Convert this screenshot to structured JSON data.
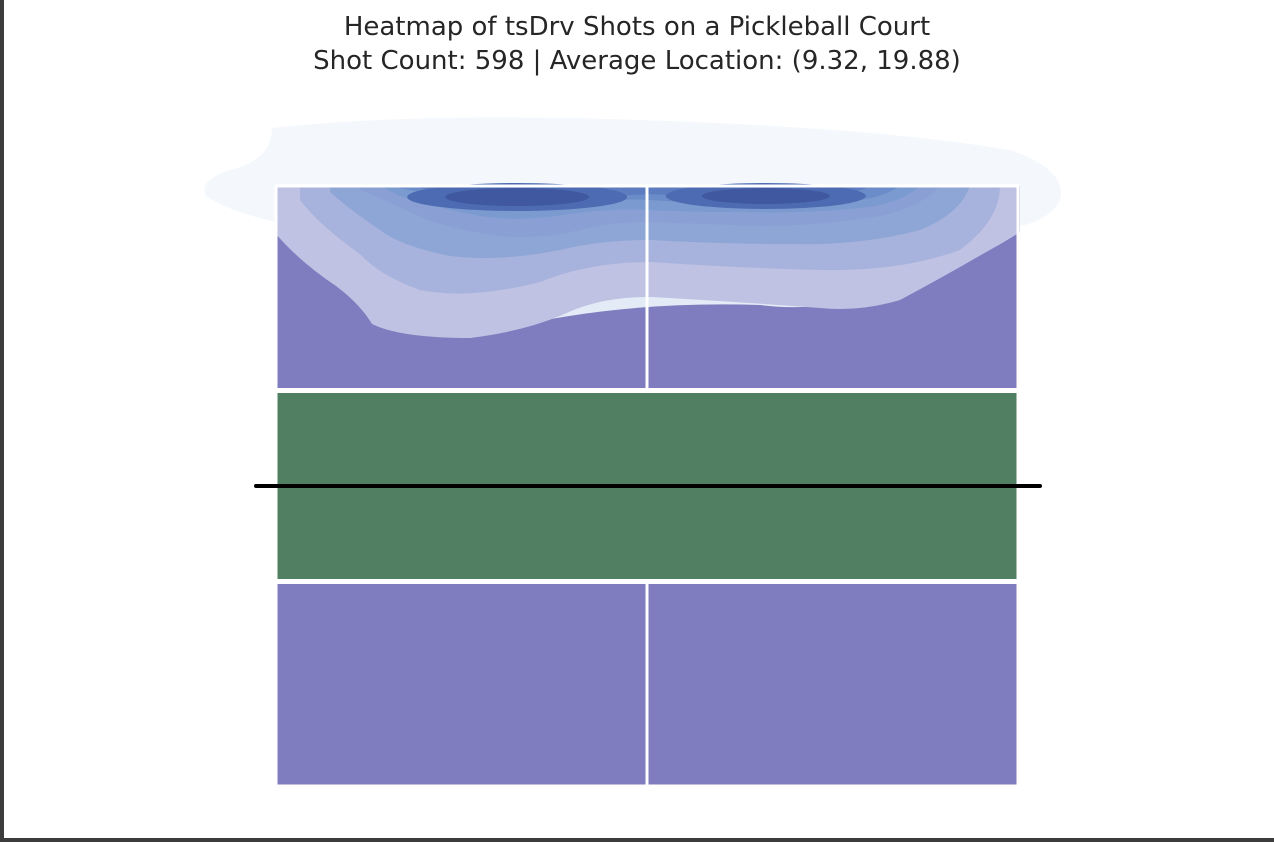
{
  "chart_data": {
    "type": "heatmap",
    "title": "Heatmap of tsDrv Shots on a Pickleball Court",
    "subtitle": "Shot Count: 598 | Average Location: (9.32, 19.88)",
    "shot_count": 598,
    "average_location": [
      9.32,
      19.88
    ],
    "court": {
      "width": 20,
      "length": 44,
      "kitchen_depth": 7,
      "net_position": 22,
      "court_color": "#7f7dbf",
      "kitchen_color": "#517f61",
      "line_color": "#ffffff",
      "net_color": "#000000"
    },
    "density_peaks": [
      {
        "x": 6.5,
        "y": 43.2,
        "level": 1.0
      },
      {
        "x": 13.2,
        "y": 43.2,
        "level": 1.0
      }
    ],
    "colormap": [
      "#f4f8fc",
      "#e3ecf6",
      "#cbdcee",
      "#b1cae6",
      "#a6b6de",
      "#a0b0dc",
      "#8ea6d6",
      "#7b9acf",
      "#6a8cc8",
      "#5c7cbf",
      "#4d6bb2",
      "#3f58a0"
    ],
    "axis": "off",
    "grid": false
  }
}
